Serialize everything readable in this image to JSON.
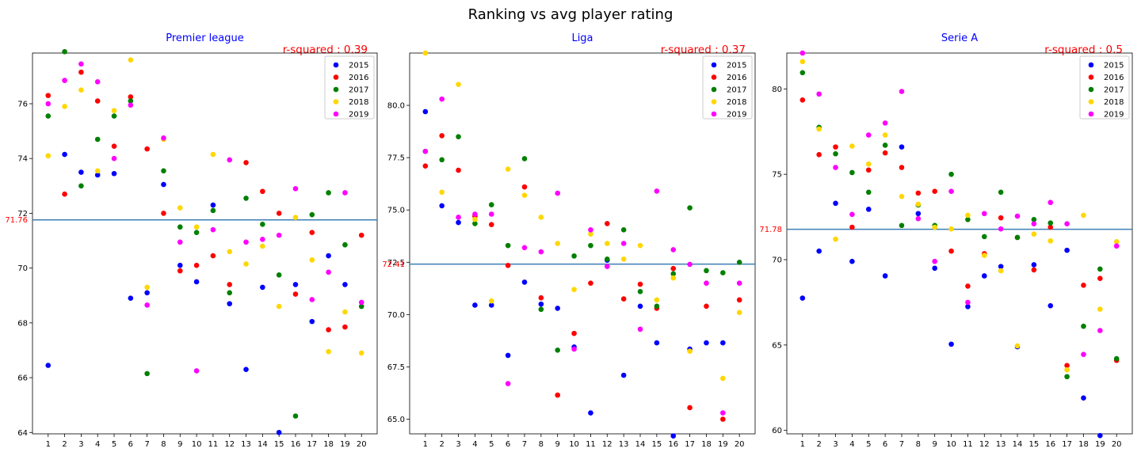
{
  "suptitle": "Ranking vs avg player rating",
  "legend_labels": [
    "2015",
    "2016",
    "2017",
    "2018",
    "2019"
  ],
  "colors": {
    "2015": "#0000ff",
    "2016": "#ff0000",
    "2017": "#008000",
    "2018": "#ffd700",
    "2019": "#ff00ff",
    "mean_line": "#3b7fb5"
  },
  "chart_data": [
    {
      "type": "scatter",
      "title": "Premier league",
      "annotation": "r-squared : 0.39",
      "mean_label": "71.76",
      "mean_value": 71.76,
      "x": [
        1,
        2,
        3,
        4,
        5,
        6,
        7,
        8,
        9,
        10,
        11,
        12,
        13,
        14,
        15,
        16,
        17,
        18,
        19,
        20
      ],
      "ylim": [
        63.95,
        77.85
      ],
      "yticks": [
        64,
        66,
        68,
        70,
        72,
        74,
        76
      ],
      "legend_position": "upper right",
      "series": [
        {
          "name": "2015",
          "values": [
            66.45,
            74.15,
            73.5,
            73.4,
            73.45,
            68.9,
            69.1,
            73.05,
            70.1,
            69.5,
            72.3,
            68.7,
            66.3,
            69.3,
            64.0,
            69.4,
            68.05,
            70.45,
            69.4,
            null
          ]
        },
        {
          "name": "2016",
          "values": [
            76.3,
            72.7,
            77.15,
            76.1,
            74.45,
            76.25,
            74.35,
            72.0,
            69.9,
            70.1,
            70.45,
            69.4,
            73.85,
            72.8,
            72.0,
            69.05,
            71.3,
            67.75,
            67.85,
            71.2
          ]
        },
        {
          "name": "2017",
          "values": [
            75.55,
            77.9,
            73.0,
            74.7,
            75.55,
            76.1,
            66.15,
            73.55,
            71.5,
            71.3,
            72.1,
            69.1,
            72.55,
            71.6,
            69.75,
            64.6,
            71.95,
            72.75,
            70.85,
            68.6
          ]
        },
        {
          "name": "2018",
          "values": [
            74.1,
            75.9,
            76.5,
            73.55,
            75.75,
            77.6,
            69.3,
            74.7,
            72.2,
            71.5,
            74.15,
            70.6,
            70.15,
            70.8,
            68.6,
            71.85,
            70.3,
            66.95,
            68.4,
            66.9
          ]
        },
        {
          "name": "2019",
          "values": [
            76.0,
            76.85,
            77.45,
            76.8,
            74.0,
            75.95,
            68.65,
            74.75,
            70.95,
            66.25,
            71.4,
            73.95,
            70.95,
            71.05,
            71.2,
            72.9,
            68.85,
            69.85,
            72.75,
            68.75
          ]
        }
      ]
    },
    {
      "type": "scatter",
      "title": "Liga",
      "annotation": "r-squared : 0.37",
      "mean_label": "72.41",
      "mean_value": 72.41,
      "x": [
        1,
        2,
        3,
        4,
        5,
        6,
        7,
        8,
        9,
        10,
        11,
        12,
        13,
        14,
        15,
        16,
        17,
        18,
        19,
        20
      ],
      "ylim": [
        64.3,
        82.5
      ],
      "yticks": [
        65.0,
        67.5,
        70.0,
        72.5,
        75.0,
        77.5,
        80.0
      ],
      "legend_position": "upper right",
      "series": [
        {
          "name": "2015",
          "values": [
            79.7,
            75.2,
            74.4,
            70.45,
            70.45,
            68.05,
            71.55,
            70.5,
            70.3,
            68.45,
            65.3,
            72.6,
            67.1,
            70.4,
            68.65,
            64.2,
            68.35,
            68.65,
            68.65,
            null
          ]
        },
        {
          "name": "2016",
          "values": [
            77.1,
            78.55,
            76.9,
            74.7,
            74.3,
            72.35,
            76.1,
            70.8,
            66.15,
            69.1,
            71.5,
            74.35,
            70.75,
            71.45,
            70.3,
            72.2,
            65.55,
            70.4,
            65.0,
            70.7
          ]
        },
        {
          "name": "2017",
          "values": [
            77.8,
            77.4,
            78.5,
            74.35,
            75.25,
            73.3,
            77.45,
            70.25,
            68.3,
            72.8,
            73.3,
            72.65,
            74.05,
            71.1,
            70.4,
            71.95,
            75.1,
            72.1,
            72.0,
            72.5
          ]
        },
        {
          "name": "2018",
          "values": [
            82.5,
            75.85,
            81.0,
            74.55,
            70.65,
            76.95,
            75.7,
            74.65,
            73.4,
            71.2,
            73.85,
            73.4,
            72.65,
            73.3,
            70.7,
            71.75,
            68.25,
            71.5,
            66.95,
            70.1
          ]
        },
        {
          "name": "2019",
          "values": [
            77.8,
            80.3,
            74.65,
            74.8,
            74.8,
            66.7,
            73.2,
            73.0,
            75.8,
            68.35,
            74.05,
            72.3,
            73.4,
            69.3,
            75.9,
            73.1,
            72.4,
            71.5,
            65.3,
            71.5
          ]
        }
      ]
    },
    {
      "type": "scatter",
      "title": "Serie A",
      "annotation": "r-squared : 0.5",
      "mean_label": "71.78",
      "mean_value": 71.78,
      "x": [
        1,
        2,
        3,
        4,
        5,
        6,
        7,
        8,
        9,
        10,
        11,
        12,
        13,
        14,
        15,
        16,
        17,
        18,
        19,
        20
      ],
      "ylim": [
        59.8,
        82.1
      ],
      "yticks": [
        60,
        65,
        70,
        75,
        80
      ],
      "legend_position": "upper right",
      "series": [
        {
          "name": "2015",
          "values": [
            67.75,
            70.5,
            73.3,
            69.9,
            72.95,
            69.05,
            76.6,
            72.7,
            69.5,
            65.05,
            67.25,
            69.05,
            69.6,
            64.9,
            69.7,
            67.3,
            70.55,
            61.9,
            59.7,
            null
          ]
        },
        {
          "name": "2016",
          "values": [
            79.35,
            76.15,
            76.6,
            71.9,
            75.25,
            76.25,
            75.4,
            73.9,
            74.0,
            70.5,
            68.45,
            70.35,
            72.45,
            71.3,
            69.4,
            71.9,
            63.8,
            68.5,
            68.9,
            64.1
          ]
        },
        {
          "name": "2017",
          "values": [
            80.95,
            77.75,
            76.2,
            75.1,
            73.95,
            76.7,
            72.0,
            73.2,
            72.0,
            75.0,
            72.35,
            71.35,
            73.95,
            71.3,
            72.35,
            72.15,
            63.15,
            66.1,
            69.45,
            64.2
          ]
        },
        {
          "name": "2018",
          "values": [
            81.6,
            77.65,
            71.2,
            76.65,
            75.6,
            77.3,
            73.7,
            73.25,
            71.9,
            71.8,
            72.6,
            70.25,
            69.35,
            64.95,
            71.5,
            71.1,
            63.55,
            72.6,
            67.1,
            71.05
          ]
        },
        {
          "name": "2019",
          "values": [
            82.1,
            79.7,
            75.4,
            72.65,
            77.3,
            78.0,
            79.85,
            72.4,
            69.9,
            74.0,
            67.5,
            72.7,
            71.8,
            72.55,
            72.1,
            73.35,
            72.1,
            64.45,
            65.85,
            70.8
          ]
        }
      ]
    }
  ]
}
